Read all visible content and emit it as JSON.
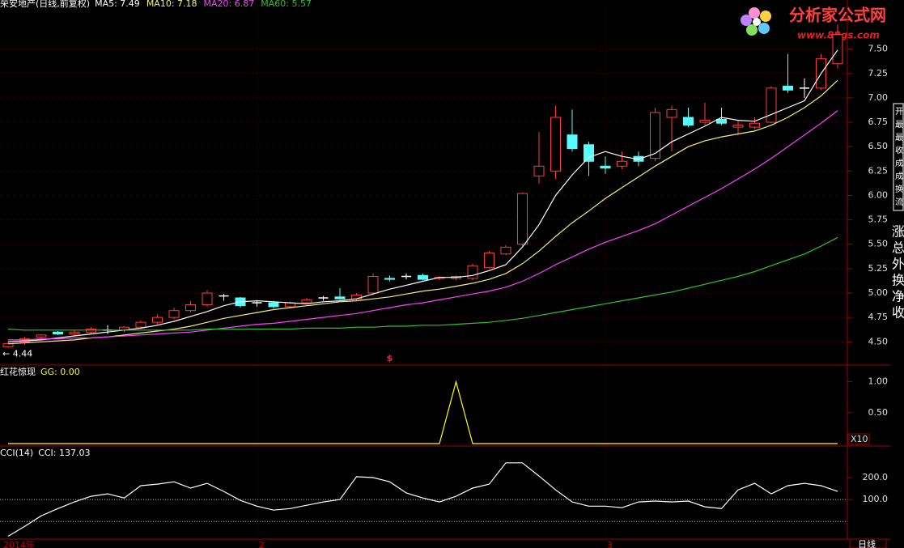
{
  "chart_data": [
    {
      "type": "candlestick",
      "title": "荣安地产(日线,前复权)",
      "categories": [
        "2014年",
        null,
        null,
        null,
        null,
        null,
        null,
        null,
        null,
        null,
        null,
        null,
        null,
        null,
        null,
        "2",
        null,
        null,
        null,
        null,
        null,
        null,
        null,
        null,
        null,
        null,
        null,
        null,
        null,
        null,
        null,
        null,
        null,
        null,
        null,
        null,
        "3",
        null,
        null,
        null,
        null,
        null,
        null,
        null,
        null,
        null,
        null,
        null,
        null,
        null,
        null
      ],
      "signals": [
        null,
        null,
        null,
        null,
        null,
        null,
        null,
        null,
        null,
        null,
        null,
        null,
        null,
        null,
        null,
        null,
        null,
        null,
        null,
        null,
        null,
        null,
        null,
        "$",
        null,
        null,
        null,
        null,
        null,
        null,
        null,
        null,
        null,
        null,
        null,
        null,
        null,
        null,
        null,
        null,
        null,
        null,
        null,
        null,
        null,
        null,
        null,
        null,
        null,
        null,
        null
      ],
      "open": [
        4.45,
        4.5,
        4.55,
        4.6,
        4.58,
        4.6,
        4.62,
        4.62,
        4.65,
        4.7,
        4.75,
        4.82,
        4.88,
        4.97,
        4.95,
        4.9,
        4.9,
        4.86,
        4.9,
        4.95,
        4.96,
        4.94,
        5.0,
        5.15,
        5.17,
        5.18,
        5.15,
        5.15,
        5.15,
        5.26,
        5.4,
        5.5,
        6.2,
        6.25,
        6.62,
        6.52,
        6.3,
        6.3,
        6.4,
        6.38,
        6.8,
        6.8,
        6.75,
        6.78,
        6.7,
        6.7,
        6.75,
        7.12,
        7.1,
        7.1,
        7.35
      ],
      "high": [
        4.5,
        4.55,
        4.58,
        4.61,
        4.62,
        4.65,
        4.67,
        4.66,
        4.72,
        4.78,
        4.85,
        4.92,
        5.03,
        4.99,
        4.96,
        4.92,
        4.92,
        4.91,
        4.95,
        4.97,
        5.05,
        5.0,
        5.2,
        5.18,
        5.2,
        5.2,
        5.17,
        5.18,
        5.3,
        5.43,
        5.49,
        6.03,
        6.65,
        6.92,
        6.88,
        6.55,
        6.4,
        6.45,
        6.45,
        6.9,
        6.92,
        6.9,
        6.95,
        6.9,
        6.77,
        6.8,
        7.12,
        7.45,
        7.2,
        7.45,
        7.75
      ],
      "low": [
        4.44,
        4.47,
        4.52,
        4.57,
        4.56,
        4.58,
        4.58,
        4.6,
        4.63,
        4.68,
        4.73,
        4.8,
        4.86,
        4.92,
        4.85,
        4.86,
        4.84,
        4.85,
        4.88,
        4.92,
        4.93,
        4.92,
        4.98,
        5.12,
        5.14,
        5.13,
        5.13,
        5.13,
        5.13,
        5.25,
        5.39,
        5.48,
        6.12,
        6.17,
        6.45,
        6.2,
        6.22,
        6.27,
        6.3,
        6.35,
        6.45,
        6.7,
        6.72,
        6.72,
        6.62,
        6.68,
        6.74,
        7.05,
        7.0,
        7.08,
        7.3
      ],
      "close": [
        4.48,
        4.53,
        4.57,
        4.58,
        4.6,
        4.63,
        4.62,
        4.65,
        4.7,
        4.75,
        4.82,
        4.88,
        5.0,
        4.97,
        4.87,
        4.9,
        4.86,
        4.9,
        4.93,
        4.95,
        4.94,
        4.98,
        5.17,
        5.14,
        5.17,
        5.14,
        5.16,
        5.17,
        5.28,
        5.41,
        5.47,
        6.02,
        6.3,
        6.8,
        6.48,
        6.35,
        6.28,
        6.35,
        6.35,
        6.85,
        6.88,
        6.72,
        6.77,
        6.74,
        6.72,
        6.74,
        7.1,
        7.08,
        7.1,
        7.4,
        7.65
      ],
      "up_color": "#ff3c3c",
      "down_color": "#54fcfc",
      "doji_color": "#ffffff",
      "series": [
        {
          "name": "MA5: 7.49",
          "color": "#ffffff",
          "values": [
            4.5,
            4.51,
            4.52,
            4.54,
            4.56,
            4.58,
            4.6,
            4.62,
            4.64,
            4.67,
            4.71,
            4.76,
            4.81,
            4.87,
            4.91,
            4.92,
            4.91,
            4.9,
            4.89,
            4.91,
            4.92,
            4.94,
            4.99,
            5.04,
            5.08,
            5.12,
            5.16,
            5.16,
            5.18,
            5.23,
            5.29,
            5.47,
            5.7,
            6.0,
            6.21,
            6.39,
            6.45,
            6.4,
            6.37,
            6.43,
            6.55,
            6.63,
            6.71,
            6.8,
            6.77,
            6.76,
            6.83,
            6.9,
            6.97,
            7.25,
            7.49
          ]
        },
        {
          "name": "MA10: 7.18",
          "color": "#f0f080",
          "values": [
            4.48,
            4.49,
            4.5,
            4.51,
            4.52,
            4.54,
            4.55,
            4.57,
            4.59,
            4.61,
            4.63,
            4.66,
            4.7,
            4.74,
            4.77,
            4.8,
            4.83,
            4.85,
            4.87,
            4.89,
            4.91,
            4.92,
            4.94,
            4.96,
            4.99,
            5.02,
            5.04,
            5.07,
            5.1,
            5.14,
            5.2,
            5.3,
            5.43,
            5.58,
            5.72,
            5.84,
            5.97,
            6.08,
            6.19,
            6.3,
            6.4,
            6.5,
            6.56,
            6.6,
            6.63,
            6.66,
            6.72,
            6.8,
            6.9,
            7.02,
            7.18
          ]
        },
        {
          "name": "MA20: 6.87",
          "color": "#ff40ff",
          "values": [
            4.52,
            4.52,
            4.53,
            4.53,
            4.54,
            4.54,
            4.55,
            4.56,
            4.57,
            4.58,
            4.59,
            4.6,
            4.62,
            4.64,
            4.66,
            4.68,
            4.69,
            4.71,
            4.73,
            4.75,
            4.77,
            4.79,
            4.82,
            4.85,
            4.88,
            4.9,
            4.93,
            4.96,
            4.99,
            5.02,
            5.06,
            5.12,
            5.2,
            5.29,
            5.37,
            5.45,
            5.52,
            5.58,
            5.64,
            5.71,
            5.8,
            5.89,
            5.98,
            6.07,
            6.17,
            6.27,
            6.38,
            6.5,
            6.62,
            6.74,
            6.87
          ]
        },
        {
          "name": "MA60: 5.57",
          "color": "#30c030",
          "values": [
            4.63,
            4.62,
            4.62,
            4.62,
            4.62,
            4.62,
            4.62,
            4.62,
            4.62,
            4.62,
            4.62,
            4.62,
            4.63,
            4.63,
            4.63,
            4.63,
            4.63,
            4.63,
            4.64,
            4.64,
            4.64,
            4.65,
            4.65,
            4.66,
            4.66,
            4.67,
            4.67,
            4.68,
            4.69,
            4.7,
            4.72,
            4.74,
            4.77,
            4.8,
            4.83,
            4.86,
            4.89,
            4.92,
            4.95,
            4.98,
            5.01,
            5.05,
            5.09,
            5.13,
            5.17,
            5.22,
            5.28,
            5.34,
            5.4,
            5.48,
            5.57
          ]
        }
      ],
      "annotations": [
        {
          "value": 4.44,
          "label": "← 4.44"
        }
      ],
      "ylim": [
        4.27,
        7.92
      ],
      "yticks": [
        {
          "value": 4.5,
          "label": "4.50"
        },
        {
          "value": 4.75,
          "label": "4.75"
        },
        {
          "value": 5,
          "label": "5.00"
        },
        {
          "value": 5.25,
          "label": "5.25"
        },
        {
          "value": 5.5,
          "label": "5.50"
        },
        {
          "value": 5.75,
          "label": "5.75"
        },
        {
          "value": 6,
          "label": "6.00"
        },
        {
          "value": 6.25,
          "label": "6.25"
        },
        {
          "value": 6.5,
          "label": "6.50"
        },
        {
          "value": 6.75,
          "label": "6.75"
        },
        {
          "value": 7,
          "label": "7.00"
        },
        {
          "value": 7.25,
          "label": "7.25"
        },
        {
          "value": 7.5,
          "label": "7.50"
        }
      ],
      "grid": true
    },
    {
      "type": "line",
      "title": "红花惊现",
      "series": [
        {
          "name": "GG: 0.00",
          "color": "#ffff00",
          "values": [
            0,
            0,
            0,
            0,
            0,
            0,
            0,
            0,
            0,
            0,
            0,
            0,
            0,
            0,
            0,
            0,
            0,
            0,
            0,
            0,
            0,
            0,
            0,
            0,
            0,
            0,
            0,
            1,
            0,
            0,
            0,
            0,
            0,
            0,
            0,
            0,
            0,
            0,
            0,
            0,
            0,
            0,
            0,
            0,
            0,
            0,
            0,
            0,
            0,
            0,
            0
          ]
        }
      ],
      "ylim": [
        -0.026,
        1.256
      ],
      "yticks": [
        {
          "value": 0.5,
          "label": "0.50"
        },
        {
          "value": 1,
          "label": "1.00"
        }
      ],
      "scale_label": "X10"
    },
    {
      "type": "line",
      "title": "CCI(14)",
      "series": [
        {
          "name": "CCI: 137.03",
          "color": "#ffffff",
          "values": [
            -67,
            -22,
            26,
            59,
            89,
            115,
            126,
            107,
            163,
            170,
            181,
            152,
            174,
            137,
            96,
            70,
            52,
            59,
            74,
            89,
            100,
            204,
            200,
            181,
            130,
            107,
            89,
            115,
            152,
            170,
            267,
            267,
            207,
            144,
            89,
            70,
            70,
            63,
            89,
            93,
            89,
            93,
            67,
            59,
            144,
            174,
            126,
            163,
            174,
            163,
            137.03
          ]
        }
      ],
      "ylim": [
        -80,
        340
      ],
      "yticks": [
        {
          "value": 100,
          "label": "100.0"
        },
        {
          "value": 200,
          "label": "200.0"
        }
      ],
      "hlines": [
        0,
        100
      ]
    }
  ],
  "period_label": "日线",
  "watermark": {
    "title": "分析家公式网",
    "url": "www.88gs.com"
  },
  "side_panel": {
    "small": [
      "开",
      "最",
      "最",
      "收",
      "成",
      "成",
      "换",
      "流"
    ],
    "large": [
      "涨",
      "总",
      "外",
      "换",
      "净",
      "收"
    ]
  }
}
